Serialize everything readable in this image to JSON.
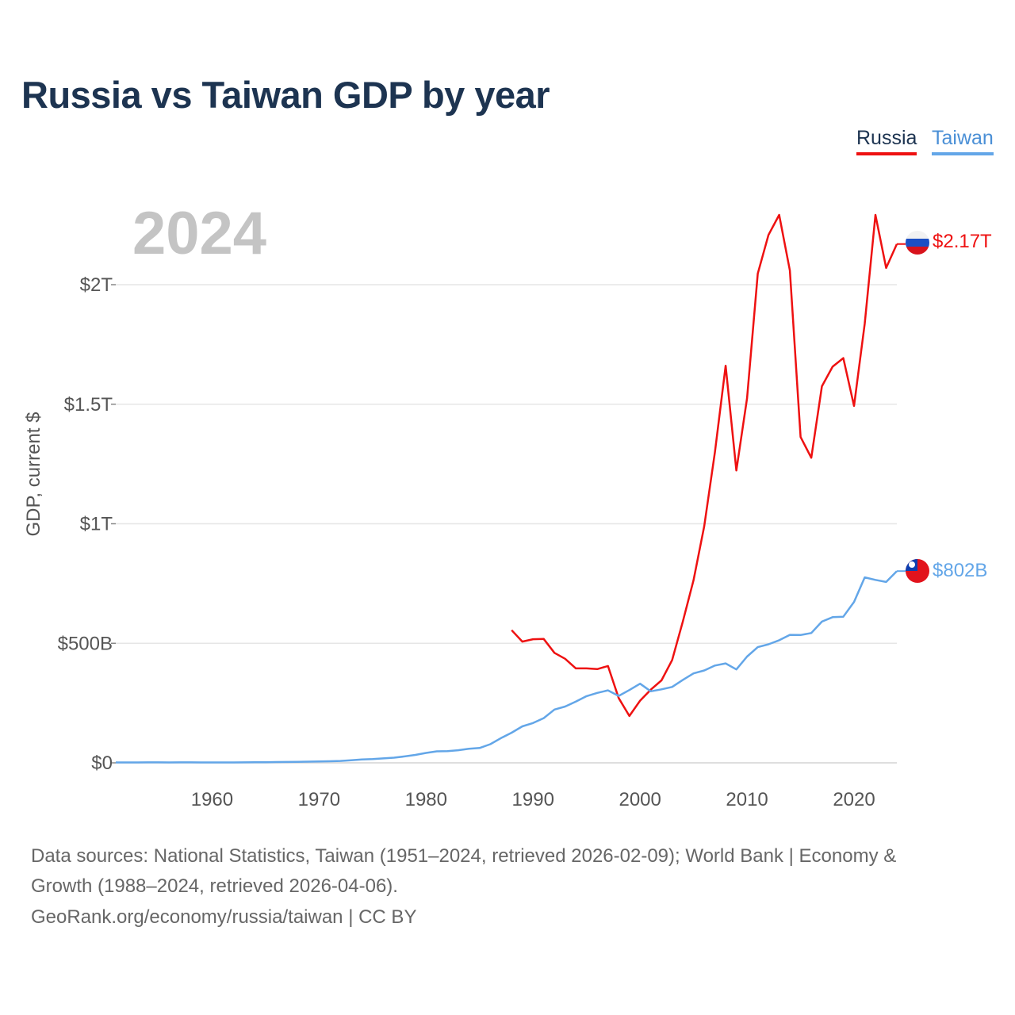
{
  "title": "Russia vs Taiwan GDP by year",
  "legend": {
    "russia": "Russia",
    "taiwan": "Taiwan"
  },
  "colors": {
    "russia": "#ee1111",
    "taiwan": "#63a6e8",
    "title": "#1d3451",
    "year": "#c4c4c4",
    "grid": "#e6e6e6",
    "axis_text": "#555555"
  },
  "year_label": "2024",
  "end_labels": {
    "russia": "$2.17T",
    "taiwan": "$802B"
  },
  "footer": {
    "source_line1": "Data sources: National Statistics, Taiwan (1951–2024, retrieved 2026-02-09); World Bank | Economy &",
    "source_line2": "Growth (1988–2024, retrieved 2026-04-06).",
    "credit": "GeoRank.org/economy/russia/taiwan | CC BY"
  },
  "chart_data": {
    "type": "line",
    "title": "Russia vs Taiwan GDP by year",
    "xlabel": "",
    "ylabel": "GDP, current $",
    "xlim": [
      1951,
      2024
    ],
    "ylim": [
      0,
      2000
    ],
    "units": "billions of current US$",
    "x_ticks": [
      1960,
      1970,
      1980,
      1990,
      2000,
      2010,
      2020
    ],
    "x_tick_labels": [
      "1960",
      "1970",
      "1980",
      "1990",
      "2000",
      "2010",
      "2020"
    ],
    "y_ticks": [
      0,
      500,
      1000,
      1500,
      2000
    ],
    "y_tick_labels": [
      "$0",
      "$500B",
      "$1T",
      "$1.5T",
      "$2T"
    ],
    "grid": true,
    "legend": "top-right",
    "series": [
      {
        "name": "Russia",
        "color": "#ee1111",
        "x": [
          1988,
          1989,
          1990,
          1991,
          1992,
          1993,
          1994,
          1995,
          1996,
          1997,
          1998,
          1999,
          2000,
          2001,
          2002,
          2003,
          2004,
          2005,
          2006,
          2007,
          2008,
          2009,
          2010,
          2011,
          2012,
          2013,
          2014,
          2015,
          2016,
          2017,
          2018,
          2019,
          2020,
          2021,
          2022,
          2023,
          2024
        ],
        "values": [
          555,
          507,
          517,
          518,
          460,
          435,
          395,
          395,
          392,
          405,
          271,
          196,
          260,
          306,
          345,
          430,
          591,
          764,
          990,
          1300,
          1661,
          1223,
          1525,
          2046,
          2208,
          2292,
          2059,
          1363,
          1276,
          1575,
          1657,
          1693,
          1493,
          1837,
          2292,
          2070,
          2170
        ]
      },
      {
        "name": "Taiwan",
        "color": "#63a6e8",
        "x": [
          1951,
          1952,
          1953,
          1954,
          1955,
          1956,
          1957,
          1958,
          1959,
          1960,
          1961,
          1962,
          1963,
          1964,
          1965,
          1966,
          1967,
          1968,
          1969,
          1970,
          1971,
          1972,
          1973,
          1974,
          1975,
          1976,
          1977,
          1978,
          1979,
          1980,
          1981,
          1982,
          1983,
          1984,
          1985,
          1986,
          1987,
          1988,
          1989,
          1990,
          1991,
          1992,
          1993,
          1994,
          1995,
          1996,
          1997,
          1998,
          1999,
          2000,
          2001,
          2002,
          2003,
          2004,
          2005,
          2006,
          2007,
          2008,
          2009,
          2010,
          2011,
          2012,
          2013,
          2014,
          2015,
          2016,
          2017,
          2018,
          2019,
          2020,
          2021,
          2022,
          2023,
          2024
        ],
        "values": [
          1.6,
          1.7,
          1.8,
          1.9,
          2.0,
          1.8,
          1.9,
          2.0,
          1.6,
          1.6,
          1.6,
          1.7,
          2.0,
          2.4,
          2.8,
          3.2,
          3.6,
          4.3,
          4.9,
          5.7,
          6.6,
          7.9,
          10.8,
          14.3,
          15.5,
          18.6,
          21.7,
          26.8,
          33.2,
          41.4,
          48.0,
          48.6,
          52.6,
          59.0,
          62.0,
          78.1,
          103.6,
          126.0,
          152.6,
          166.6,
          187.1,
          222.9,
          235.6,
          256.2,
          279.1,
          292.5,
          303.3,
          280.0,
          304.5,
          331.0,
          299.3,
          307.4,
          317.4,
          346.9,
          374.1,
          386.5,
          406.9,
          415.9,
          390.8,
          444.3,
          483.8,
          495.8,
          512.9,
          535.3,
          534.5,
          543.1,
          590.7,
          609.2,
          611.4,
          673.1,
          775.8,
          765.3,
          756.6,
          802.0
        ]
      }
    ]
  }
}
